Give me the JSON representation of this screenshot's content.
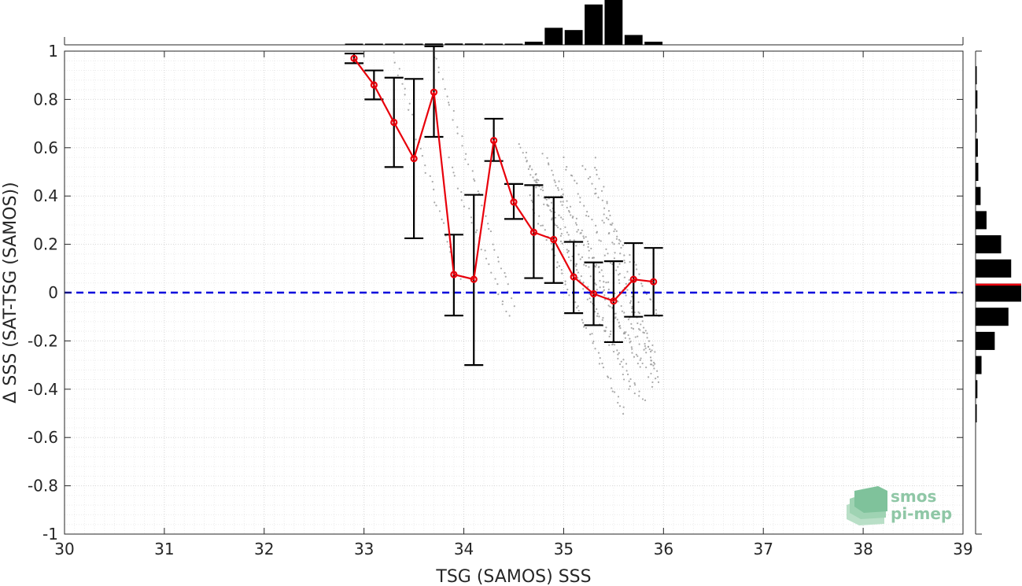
{
  "chart_data": {
    "type": "scatter",
    "title": "",
    "xlabel": "TSG (SAMOS) SSS",
    "ylabel": "Δ SSS (SAT-TSG (SAMOS))",
    "xlim": [
      30,
      39
    ],
    "ylim": [
      -1,
      1
    ],
    "xticks": [
      "30",
      "31",
      "32",
      "33",
      "34",
      "35",
      "36",
      "37",
      "38",
      "39"
    ],
    "yticks": [
      "-1",
      "-0.8",
      "-0.6",
      "-0.4",
      "-0.2",
      "0",
      "0.2",
      "0.4",
      "0.6",
      "0.8",
      "1"
    ],
    "grid": true,
    "reference_line": {
      "y": 0,
      "style": "dashed",
      "color": "#0000dd"
    },
    "series": [
      {
        "type": "line-with-errorbars",
        "color": "#e8000b",
        "points": [
          {
            "x": 32.9,
            "y": 0.97,
            "lo": 0.95,
            "hi": 0.99
          },
          {
            "x": 33.1,
            "y": 0.86,
            "lo": 0.8,
            "hi": 0.92
          },
          {
            "x": 33.3,
            "y": 0.705,
            "lo": 0.52,
            "hi": 0.89
          },
          {
            "x": 33.5,
            "y": 0.555,
            "lo": 0.225,
            "hi": 0.885
          },
          {
            "x": 33.7,
            "y": 0.83,
            "lo": 0.645,
            "hi": 1.02
          },
          {
            "x": 33.9,
            "y": 0.075,
            "lo": -0.095,
            "hi": 0.24
          },
          {
            "x": 34.1,
            "y": 0.055,
            "lo": -0.3,
            "hi": 0.405
          },
          {
            "x": 34.3,
            "y": 0.63,
            "lo": 0.545,
            "hi": 0.72
          },
          {
            "x": 34.5,
            "y": 0.375,
            "lo": 0.305,
            "hi": 0.45
          },
          {
            "x": 34.7,
            "y": 0.25,
            "lo": 0.06,
            "hi": 0.445
          },
          {
            "x": 34.9,
            "y": 0.22,
            "lo": 0.04,
            "hi": 0.395
          },
          {
            "x": 35.1,
            "y": 0.065,
            "lo": -0.085,
            "hi": 0.21
          },
          {
            "x": 35.3,
            "y": -0.005,
            "lo": -0.135,
            "hi": 0.125
          },
          {
            "x": 35.5,
            "y": -0.035,
            "lo": -0.205,
            "hi": 0.13
          },
          {
            "x": 35.7,
            "y": 0.055,
            "lo": -0.1,
            "hi": 0.205
          },
          {
            "x": 35.9,
            "y": 0.045,
            "lo": -0.095,
            "hi": 0.185
          }
        ]
      }
    ],
    "scatter_cloud": {
      "color": "#9a9a9a",
      "streaks": [
        {
          "x0": 33.7,
          "y0": 0.98,
          "x1": 34.5,
          "y1": -0.05,
          "n": 40
        },
        {
          "x0": 33.3,
          "y0": 0.98,
          "x1": 33.95,
          "y1": 0.05,
          "n": 34
        },
        {
          "x0": 33.85,
          "y0": 0.55,
          "x1": 34.45,
          "y1": -0.1,
          "n": 26
        },
        {
          "x0": 34.55,
          "y0": 0.62,
          "x1": 35.7,
          "y1": -0.42,
          "n": 60
        },
        {
          "x0": 34.6,
          "y0": 0.55,
          "x1": 35.8,
          "y1": -0.46,
          "n": 60
        },
        {
          "x0": 34.7,
          "y0": 0.5,
          "x1": 35.9,
          "y1": -0.38,
          "n": 60
        },
        {
          "x0": 34.8,
          "y0": 0.58,
          "x1": 35.75,
          "y1": -0.3,
          "n": 50
        },
        {
          "x0": 34.9,
          "y0": 0.45,
          "x1": 35.9,
          "y1": -0.3,
          "n": 50
        },
        {
          "x0": 35.0,
          "y0": 0.55,
          "x1": 35.9,
          "y1": -0.25,
          "n": 45
        },
        {
          "x0": 35.2,
          "y0": 0.52,
          "x1": 35.95,
          "y1": -0.1,
          "n": 38
        },
        {
          "x0": 35.3,
          "y0": 0.55,
          "x1": 35.95,
          "y1": -0.35,
          "n": 40
        },
        {
          "x0": 34.65,
          "y0": 0.4,
          "x1": 35.6,
          "y1": -0.5,
          "n": 55
        },
        {
          "x0": 35.4,
          "y0": 0.3,
          "x1": 35.95,
          "y1": -0.37,
          "n": 32
        }
      ]
    },
    "top_histogram": {
      "bins_x": [
        32.9,
        33.1,
        33.3,
        33.5,
        33.7,
        33.9,
        34.1,
        34.3,
        34.5,
        34.7,
        34.9,
        35.1,
        35.3,
        35.5,
        35.7,
        35.9
      ],
      "counts": [
        0.02,
        0.02,
        0.02,
        0.02,
        0.03,
        0.03,
        0.03,
        0.02,
        0.02,
        0.07,
        0.38,
        0.33,
        0.9,
        1.0,
        0.22,
        0.07
      ]
    },
    "right_histogram": {
      "bins_y": [
        0.9,
        0.8,
        0.7,
        0.6,
        0.5,
        0.4,
        0.3,
        0.2,
        0.1,
        0.0,
        -0.1,
        -0.2,
        -0.3,
        -0.4,
        -0.5
      ],
      "counts": [
        0.02,
        0.04,
        0.02,
        0.05,
        0.06,
        0.11,
        0.24,
        0.56,
        0.78,
        1.0,
        0.72,
        0.42,
        0.13,
        0.04,
        0.02
      ],
      "mean_line": {
        "y": 0.033,
        "color": "#e8000b"
      }
    },
    "logo": {
      "line1": "smos",
      "line2": "pi-mep"
    }
  }
}
